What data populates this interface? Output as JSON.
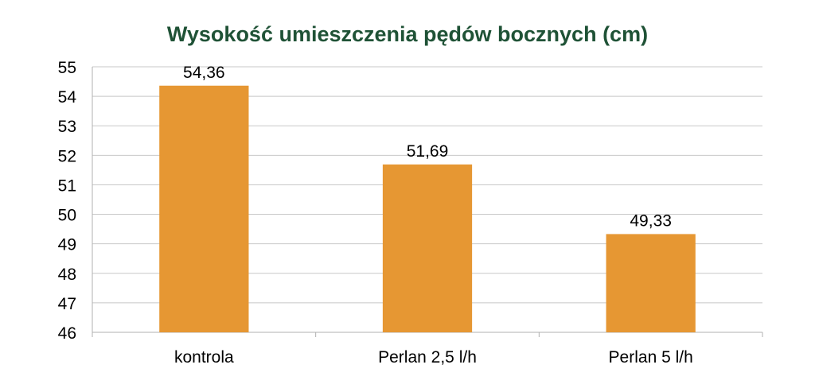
{
  "chart_data": {
    "type": "bar",
    "title": "Wysokość umieszczenia pędów bocznych (cm)",
    "xlabel": "",
    "ylabel": "",
    "categories": [
      "kontrola",
      "Perlan 2,5 l/h",
      "Perlan 5 l/h"
    ],
    "values": [
      54.36,
      51.69,
      49.33
    ],
    "value_labels": [
      "54,36",
      "51,69",
      "49,33"
    ],
    "ylim": [
      46,
      55
    ],
    "yticks": [
      46,
      47,
      48,
      49,
      50,
      51,
      52,
      53,
      54,
      55
    ],
    "grid": true,
    "legend": "none"
  },
  "colors": {
    "bar": "#E69733",
    "title": "#1F5236",
    "grid": "#C8C8C8",
    "axis": "#B0B0B0"
  }
}
